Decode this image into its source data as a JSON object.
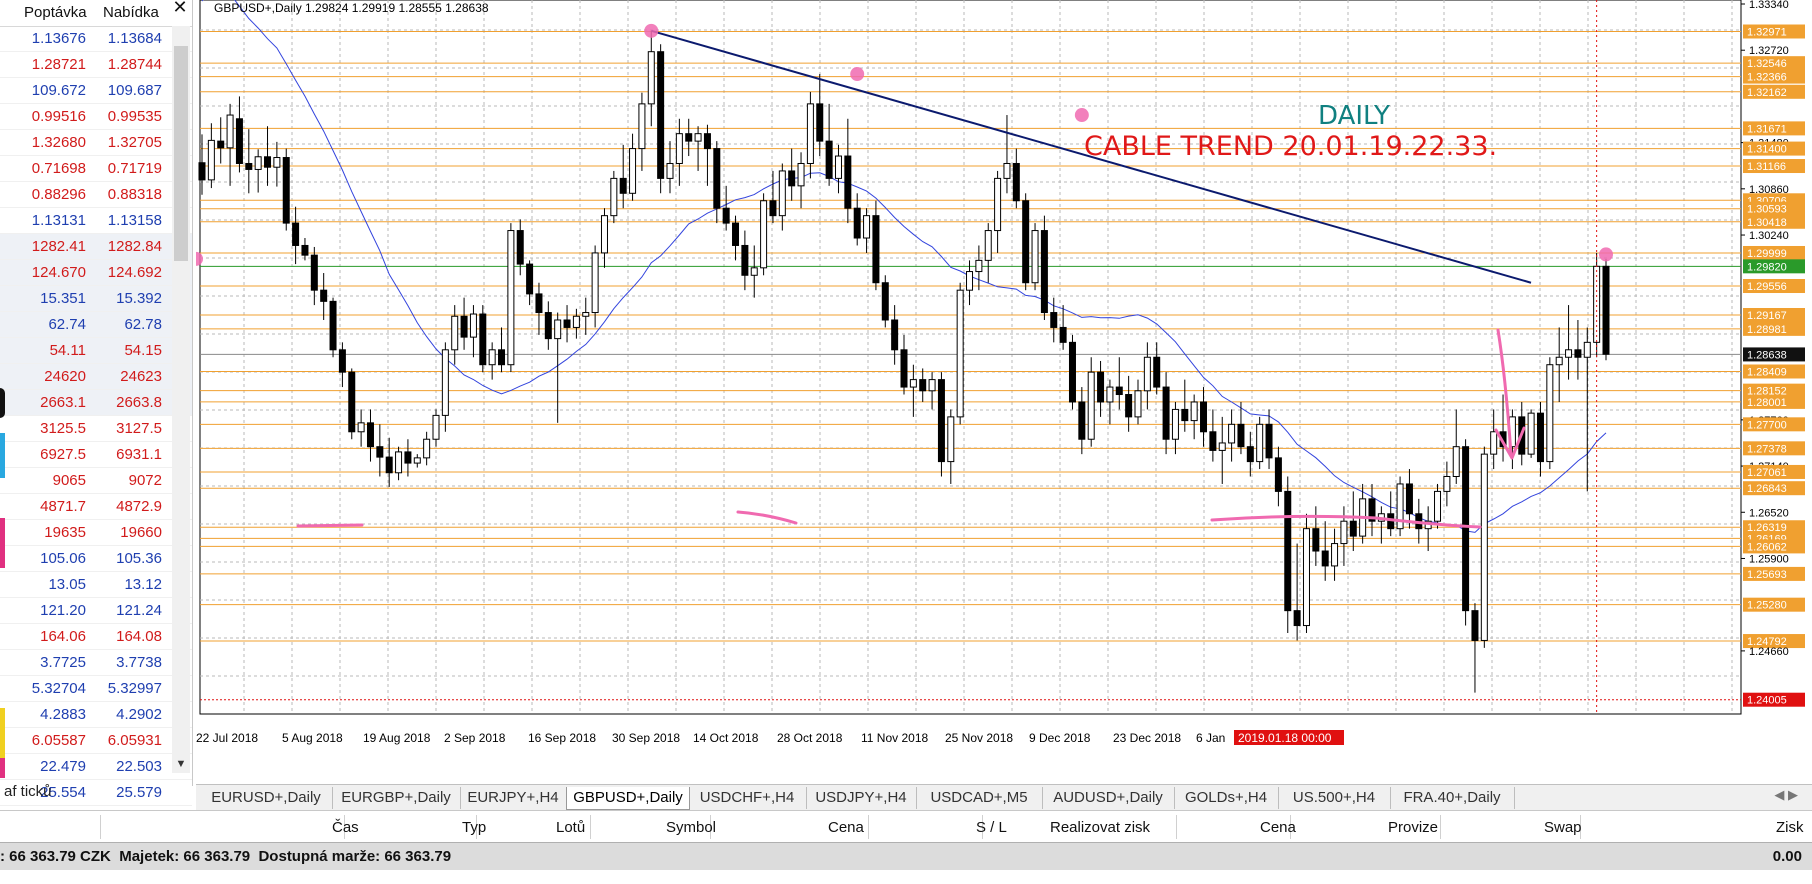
{
  "market_watch": {
    "col_bid": "Poptávka",
    "col_ask": "Nabídka",
    "close_glyph": "✕",
    "rows": [
      {
        "bid": "1.13676",
        "ask": "1.13684",
        "color": "#1f3fb0"
      },
      {
        "bid": "1.28721",
        "ask": "1.28744",
        "color": "#d11b1b"
      },
      {
        "bid": "109.672",
        "ask": "109.687",
        "color": "#1f3fb0"
      },
      {
        "bid": "0.99516",
        "ask": "0.99535",
        "color": "#d11b1b"
      },
      {
        "bid": "1.32680",
        "ask": "1.32705",
        "color": "#d11b1b"
      },
      {
        "bid": "0.71698",
        "ask": "0.71719",
        "color": "#d11b1b"
      },
      {
        "bid": "0.88296",
        "ask": "0.88318",
        "color": "#d11b1b"
      },
      {
        "bid": "1.13131",
        "ask": "1.13158",
        "color": "#1f3fb0"
      },
      {
        "bid": "1282.41",
        "ask": "1282.84",
        "color": "#d11b1b"
      },
      {
        "bid": "124.670",
        "ask": "124.692",
        "color": "#d11b1b"
      },
      {
        "bid": "15.351",
        "ask": "15.392",
        "color": "#1f3fb0"
      },
      {
        "bid": "62.74",
        "ask": "62.78",
        "color": "#1f3fb0"
      },
      {
        "bid": "54.11",
        "ask": "54.15",
        "color": "#d11b1b"
      },
      {
        "bid": "24620",
        "ask": "24623",
        "color": "#d11b1b"
      },
      {
        "bid": "2663.1",
        "ask": "2663.8",
        "color": "#d11b1b"
      },
      {
        "bid": "3125.5",
        "ask": "3127.5",
        "color": "#d11b1b"
      },
      {
        "bid": "6927.5",
        "ask": "6931.1",
        "color": "#d11b1b"
      },
      {
        "bid": "9065",
        "ask": "9072",
        "color": "#d11b1b"
      },
      {
        "bid": "4871.7",
        "ask": "4872.9",
        "color": "#d11b1b"
      },
      {
        "bid": "19635",
        "ask": "19660",
        "color": "#d11b1b"
      },
      {
        "bid": "105.06",
        "ask": "105.36",
        "color": "#1f3fb0"
      },
      {
        "bid": "13.05",
        "ask": "13.12",
        "color": "#1f3fb0"
      },
      {
        "bid": "121.20",
        "ask": "121.24",
        "color": "#1f3fb0"
      },
      {
        "bid": "164.06",
        "ask": "164.08",
        "color": "#d11b1b"
      },
      {
        "bid": "3.7725",
        "ask": "3.7738",
        "color": "#1f3fb0"
      },
      {
        "bid": "5.32704",
        "ask": "5.32997",
        "color": "#1f3fb0"
      },
      {
        "bid": "4.2883",
        "ask": "4.2902",
        "color": "#1f3fb0"
      },
      {
        "bid": "6.05587",
        "ask": "6.05931",
        "color": "#d11b1b"
      },
      {
        "bid": "22.479",
        "ask": "22.503",
        "color": "#1f3fb0"
      },
      {
        "bid": "25.554",
        "ask": "25.579",
        "color": "#1f3fb0"
      }
    ],
    "bottom_tab": "af ticků"
  },
  "chart": {
    "header": "GBPUSD+,Daily  1.29824 1.29919 1.28555 1.28638",
    "annotation_line1": "DAILY",
    "annotation_line2": "CABLE TREND 20.01.19.22.33.",
    "date_labels": [
      "22 Jul 2018",
      "5 Aug 2018",
      "19 Aug 2018",
      "2 Sep 2018",
      "16 Sep 2018",
      "30 Sep 2018",
      "14 Oct 2018",
      "28 Oct 2018",
      "11 Nov 2018",
      "25 Nov 2018",
      "9 Dec 2018",
      "23 Dec 2018",
      "6 Jan"
    ],
    "date_highlight": "2019.01.18 00:00",
    "price_labels": [
      "1.33340",
      "1.32971",
      "1.32720",
      "1.32546",
      "1.32366",
      "1.32162",
      "1.31671",
      "1.31480",
      "1.31400",
      "1.31166",
      "1.30860",
      "1.30706",
      "1.30593",
      "1.30418",
      "1.30240",
      "1.29999",
      "1.29820",
      "1.29556",
      "1.29167",
      "1.28981",
      "1.28638",
      "1.28409",
      "1.28152",
      "1.28001",
      "1.27760",
      "1.27700",
      "1.27378",
      "1.27140",
      "1.27061",
      "1.26843",
      "1.26520",
      "1.26319",
      "1.26169",
      "1.26062",
      "1.25900",
      "1.25693",
      "1.25280",
      "1.24792",
      "1.24660",
      "1.24005"
    ],
    "highlight_labels": {
      "current": "1.28638",
      "green": "1.29820",
      "red": "1.24005"
    },
    "price_range": [
      1.2384,
      1.3334
    ],
    "candles": [
      {
        "o": 1.3121,
        "h": 1.3159,
        "l": 1.3078,
        "c": 1.3098
      },
      {
        "o": 1.3098,
        "h": 1.3174,
        "l": 1.3087,
        "c": 1.3151
      },
      {
        "o": 1.315,
        "h": 1.3182,
        "l": 1.312,
        "c": 1.3141
      },
      {
        "o": 1.3141,
        "h": 1.32,
        "l": 1.309,
        "c": 1.3185
      },
      {
        "o": 1.318,
        "h": 1.321,
        "l": 1.3108,
        "c": 1.312
      },
      {
        "o": 1.312,
        "h": 1.3166,
        "l": 1.308,
        "c": 1.3112
      },
      {
        "o": 1.3112,
        "h": 1.3139,
        "l": 1.3081,
        "c": 1.3129
      },
      {
        "o": 1.3129,
        "h": 1.317,
        "l": 1.309,
        "c": 1.3115
      },
      {
        "o": 1.3115,
        "h": 1.3149,
        "l": 1.3089,
        "c": 1.3128
      },
      {
        "o": 1.3128,
        "h": 1.314,
        "l": 1.303,
        "c": 1.304
      },
      {
        "o": 1.304,
        "h": 1.3062,
        "l": 1.2985,
        "c": 1.301
      },
      {
        "o": 1.301,
        "h": 1.302,
        "l": 1.299,
        "c": 1.2997
      },
      {
        "o": 1.2997,
        "h": 1.3008,
        "l": 1.293,
        "c": 1.295
      },
      {
        "o": 1.295,
        "h": 1.2973,
        "l": 1.291,
        "c": 1.2935
      },
      {
        "o": 1.2935,
        "h": 1.294,
        "l": 1.286,
        "c": 1.287
      },
      {
        "o": 1.287,
        "h": 1.288,
        "l": 1.282,
        "c": 1.284
      },
      {
        "o": 1.284,
        "h": 1.2845,
        "l": 1.275,
        "c": 1.276
      },
      {
        "o": 1.276,
        "h": 1.279,
        "l": 1.274,
        "c": 1.2772
      },
      {
        "o": 1.2772,
        "h": 1.279,
        "l": 1.272,
        "c": 1.274
      },
      {
        "o": 1.274,
        "h": 1.277,
        "l": 1.27,
        "c": 1.2726
      },
      {
        "o": 1.2726,
        "h": 1.2752,
        "l": 1.2686,
        "c": 1.2705
      },
      {
        "o": 1.2705,
        "h": 1.274,
        "l": 1.2695,
        "c": 1.2733
      },
      {
        "o": 1.2733,
        "h": 1.275,
        "l": 1.27,
        "c": 1.2718
      },
      {
        "o": 1.2718,
        "h": 1.273,
        "l": 1.2712,
        "c": 1.2725
      },
      {
        "o": 1.2725,
        "h": 1.276,
        "l": 1.2715,
        "c": 1.275
      },
      {
        "o": 1.275,
        "h": 1.279,
        "l": 1.274,
        "c": 1.2782
      },
      {
        "o": 1.2782,
        "h": 1.288,
        "l": 1.276,
        "c": 1.287
      },
      {
        "o": 1.287,
        "h": 1.293,
        "l": 1.285,
        "c": 1.2915
      },
      {
        "o": 1.2915,
        "h": 1.294,
        "l": 1.287,
        "c": 1.2887
      },
      {
        "o": 1.2887,
        "h": 1.293,
        "l": 1.286,
        "c": 1.2918
      },
      {
        "o": 1.2918,
        "h": 1.293,
        "l": 1.284,
        "c": 1.285
      },
      {
        "o": 1.285,
        "h": 1.288,
        "l": 1.283,
        "c": 1.287
      },
      {
        "o": 1.287,
        "h": 1.29,
        "l": 1.284,
        "c": 1.285
      },
      {
        "o": 1.285,
        "h": 1.304,
        "l": 1.284,
        "c": 1.303
      },
      {
        "o": 1.303,
        "h": 1.3045,
        "l": 1.297,
        "c": 1.2985
      },
      {
        "o": 1.2985,
        "h": 1.299,
        "l": 1.293,
        "c": 1.2945
      },
      {
        "o": 1.2945,
        "h": 1.296,
        "l": 1.289,
        "c": 1.292
      },
      {
        "o": 1.292,
        "h": 1.2935,
        "l": 1.287,
        "c": 1.2885
      },
      {
        "o": 1.2885,
        "h": 1.292,
        "l": 1.2772,
        "c": 1.291
      },
      {
        "o": 1.291,
        "h": 1.293,
        "l": 1.288,
        "c": 1.29
      },
      {
        "o": 1.29,
        "h": 1.2925,
        "l": 1.2885,
        "c": 1.2915
      },
      {
        "o": 1.2915,
        "h": 1.294,
        "l": 1.289,
        "c": 1.292
      },
      {
        "o": 1.292,
        "h": 1.301,
        "l": 1.29,
        "c": 1.3
      },
      {
        "o": 1.3,
        "h": 1.306,
        "l": 1.298,
        "c": 1.305
      },
      {
        "o": 1.305,
        "h": 1.311,
        "l": 1.304,
        "c": 1.31
      },
      {
        "o": 1.31,
        "h": 1.3145,
        "l": 1.306,
        "c": 1.308
      },
      {
        "o": 1.308,
        "h": 1.316,
        "l": 1.307,
        "c": 1.314
      },
      {
        "o": 1.314,
        "h": 1.3215,
        "l": 1.311,
        "c": 1.32
      },
      {
        "o": 1.32,
        "h": 1.3298,
        "l": 1.317,
        "c": 1.327
      },
      {
        "o": 1.327,
        "h": 1.328,
        "l": 1.308,
        "c": 1.31
      },
      {
        "o": 1.31,
        "h": 1.315,
        "l": 1.308,
        "c": 1.312
      },
      {
        "o": 1.312,
        "h": 1.318,
        "l": 1.309,
        "c": 1.316
      },
      {
        "o": 1.316,
        "h": 1.318,
        "l": 1.313,
        "c": 1.315
      },
      {
        "o": 1.315,
        "h": 1.317,
        "l": 1.311,
        "c": 1.316
      },
      {
        "o": 1.316,
        "h": 1.3172,
        "l": 1.309,
        "c": 1.314
      },
      {
        "o": 1.314,
        "h": 1.315,
        "l": 1.304,
        "c": 1.306
      },
      {
        "o": 1.306,
        "h": 1.309,
        "l": 1.303,
        "c": 1.304
      },
      {
        "o": 1.304,
        "h": 1.305,
        "l": 1.299,
        "c": 1.301
      },
      {
        "o": 1.301,
        "h": 1.303,
        "l": 1.295,
        "c": 1.297
      },
      {
        "o": 1.297,
        "h": 1.301,
        "l": 1.294,
        "c": 1.298
      },
      {
        "o": 1.298,
        "h": 1.308,
        "l": 1.297,
        "c": 1.307
      },
      {
        "o": 1.307,
        "h": 1.311,
        "l": 1.304,
        "c": 1.305
      },
      {
        "o": 1.305,
        "h": 1.312,
        "l": 1.303,
        "c": 1.311
      },
      {
        "o": 1.311,
        "h": 1.314,
        "l": 1.307,
        "c": 1.309
      },
      {
        "o": 1.309,
        "h": 1.3135,
        "l": 1.306,
        "c": 1.312
      },
      {
        "o": 1.312,
        "h": 1.3216,
        "l": 1.31,
        "c": 1.32
      },
      {
        "o": 1.32,
        "h": 1.324,
        "l": 1.313,
        "c": 1.315
      },
      {
        "o": 1.315,
        "h": 1.32,
        "l": 1.309,
        "c": 1.31
      },
      {
        "o": 1.31,
        "h": 1.3145,
        "l": 1.308,
        "c": 1.313
      },
      {
        "o": 1.313,
        "h": 1.318,
        "l": 1.304,
        "c": 1.306
      },
      {
        "o": 1.306,
        "h": 1.308,
        "l": 1.301,
        "c": 1.302
      },
      {
        "o": 1.302,
        "h": 1.306,
        "l": 1.3,
        "c": 1.305
      },
      {
        "o": 1.305,
        "h": 1.307,
        "l": 1.295,
        "c": 1.296
      },
      {
        "o": 1.296,
        "h": 1.297,
        "l": 1.29,
        "c": 1.291
      },
      {
        "o": 1.291,
        "h": 1.293,
        "l": 1.285,
        "c": 1.287
      },
      {
        "o": 1.287,
        "h": 1.289,
        "l": 1.281,
        "c": 1.282
      },
      {
        "o": 1.282,
        "h": 1.285,
        "l": 1.278,
        "c": 1.283
      },
      {
        "o": 1.283,
        "h": 1.2845,
        "l": 1.28,
        "c": 1.2815
      },
      {
        "o": 1.2815,
        "h": 1.284,
        "l": 1.279,
        "c": 1.283
      },
      {
        "o": 1.283,
        "h": 1.284,
        "l": 1.27,
        "c": 1.272
      },
      {
        "o": 1.272,
        "h": 1.279,
        "l": 1.269,
        "c": 1.278
      },
      {
        "o": 1.278,
        "h": 1.296,
        "l": 1.277,
        "c": 1.295
      },
      {
        "o": 1.295,
        "h": 1.299,
        "l": 1.293,
        "c": 1.2975
      },
      {
        "o": 1.2975,
        "h": 1.301,
        "l": 1.295,
        "c": 1.299
      },
      {
        "o": 1.299,
        "h": 1.304,
        "l": 1.296,
        "c": 1.303
      },
      {
        "o": 1.303,
        "h": 1.311,
        "l": 1.3,
        "c": 1.31
      },
      {
        "o": 1.31,
        "h": 1.3185,
        "l": 1.308,
        "c": 1.312
      },
      {
        "o": 1.312,
        "h": 1.314,
        "l": 1.306,
        "c": 1.307
      },
      {
        "o": 1.307,
        "h": 1.308,
        "l": 1.295,
        "c": 1.296
      },
      {
        "o": 1.296,
        "h": 1.304,
        "l": 1.295,
        "c": 1.303
      },
      {
        "o": 1.303,
        "h": 1.305,
        "l": 1.291,
        "c": 1.292
      },
      {
        "o": 1.292,
        "h": 1.294,
        "l": 1.288,
        "c": 1.29
      },
      {
        "o": 1.29,
        "h": 1.293,
        "l": 1.287,
        "c": 1.288
      },
      {
        "o": 1.288,
        "h": 1.289,
        "l": 1.279,
        "c": 1.28
      },
      {
        "o": 1.28,
        "h": 1.282,
        "l": 1.273,
        "c": 1.275
      },
      {
        "o": 1.275,
        "h": 1.286,
        "l": 1.274,
        "c": 1.284
      },
      {
        "o": 1.284,
        "h": 1.2855,
        "l": 1.278,
        "c": 1.28
      },
      {
        "o": 1.28,
        "h": 1.283,
        "l": 1.277,
        "c": 1.282
      },
      {
        "o": 1.282,
        "h": 1.286,
        "l": 1.279,
        "c": 1.281
      },
      {
        "o": 1.281,
        "h": 1.2835,
        "l": 1.276,
        "c": 1.278
      },
      {
        "o": 1.278,
        "h": 1.283,
        "l": 1.277,
        "c": 1.2815
      },
      {
        "o": 1.2815,
        "h": 1.288,
        "l": 1.279,
        "c": 1.286
      },
      {
        "o": 1.286,
        "h": 1.288,
        "l": 1.281,
        "c": 1.282
      },
      {
        "o": 1.282,
        "h": 1.284,
        "l": 1.273,
        "c": 1.275
      },
      {
        "o": 1.275,
        "h": 1.28,
        "l": 1.273,
        "c": 1.279
      },
      {
        "o": 1.279,
        "h": 1.283,
        "l": 1.276,
        "c": 1.2775
      },
      {
        "o": 1.2775,
        "h": 1.281,
        "l": 1.275,
        "c": 1.28
      },
      {
        "o": 1.28,
        "h": 1.282,
        "l": 1.274,
        "c": 1.276
      },
      {
        "o": 1.276,
        "h": 1.279,
        "l": 1.272,
        "c": 1.2735
      },
      {
        "o": 1.2735,
        "h": 1.278,
        "l": 1.269,
        "c": 1.2745
      },
      {
        "o": 1.2745,
        "h": 1.279,
        "l": 1.272,
        "c": 1.277
      },
      {
        "o": 1.277,
        "h": 1.28,
        "l": 1.273,
        "c": 1.274
      },
      {
        "o": 1.274,
        "h": 1.276,
        "l": 1.27,
        "c": 1.272
      },
      {
        "o": 1.272,
        "h": 1.278,
        "l": 1.271,
        "c": 1.277
      },
      {
        "o": 1.277,
        "h": 1.279,
        "l": 1.271,
        "c": 1.2725
      },
      {
        "o": 1.2725,
        "h": 1.274,
        "l": 1.266,
        "c": 1.268
      },
      {
        "o": 1.268,
        "h": 1.27,
        "l": 1.249,
        "c": 1.252
      },
      {
        "o": 1.252,
        "h": 1.261,
        "l": 1.248,
        "c": 1.25
      },
      {
        "o": 1.25,
        "h": 1.265,
        "l": 1.249,
        "c": 1.263
      },
      {
        "o": 1.263,
        "h": 1.266,
        "l": 1.258,
        "c": 1.26
      },
      {
        "o": 1.26,
        "h": 1.264,
        "l": 1.256,
        "c": 1.258
      },
      {
        "o": 1.258,
        "h": 1.263,
        "l": 1.256,
        "c": 1.261
      },
      {
        "o": 1.261,
        "h": 1.266,
        "l": 1.258,
        "c": 1.264
      },
      {
        "o": 1.264,
        "h": 1.268,
        "l": 1.26,
        "c": 1.262
      },
      {
        "o": 1.262,
        "h": 1.269,
        "l": 1.261,
        "c": 1.267
      },
      {
        "o": 1.267,
        "h": 1.269,
        "l": 1.262,
        "c": 1.264
      },
      {
        "o": 1.264,
        "h": 1.266,
        "l": 1.261,
        "c": 1.265
      },
      {
        "o": 1.265,
        "h": 1.268,
        "l": 1.262,
        "c": 1.263
      },
      {
        "o": 1.263,
        "h": 1.27,
        "l": 1.262,
        "c": 1.269
      },
      {
        "o": 1.269,
        "h": 1.271,
        "l": 1.263,
        "c": 1.265
      },
      {
        "o": 1.265,
        "h": 1.267,
        "l": 1.261,
        "c": 1.263
      },
      {
        "o": 1.263,
        "h": 1.266,
        "l": 1.26,
        "c": 1.264
      },
      {
        "o": 1.264,
        "h": 1.269,
        "l": 1.263,
        "c": 1.268
      },
      {
        "o": 1.268,
        "h": 1.272,
        "l": 1.266,
        "c": 1.27
      },
      {
        "o": 1.27,
        "h": 1.279,
        "l": 1.269,
        "c": 1.274
      },
      {
        "o": 1.274,
        "h": 1.275,
        "l": 1.25,
        "c": 1.252
      },
      {
        "o": 1.252,
        "h": 1.253,
        "l": 1.241,
        "c": 1.248
      },
      {
        "o": 1.248,
        "h": 1.274,
        "l": 1.247,
        "c": 1.273
      },
      {
        "o": 1.273,
        "h": 1.279,
        "l": 1.271,
        "c": 1.276
      },
      {
        "o": 1.276,
        "h": 1.281,
        "l": 1.272,
        "c": 1.274
      },
      {
        "o": 1.274,
        "h": 1.279,
        "l": 1.271,
        "c": 1.278
      },
      {
        "o": 1.278,
        "h": 1.28,
        "l": 1.2715,
        "c": 1.273
      },
      {
        "o": 1.273,
        "h": 1.279,
        "l": 1.2725,
        "c": 1.2785
      },
      {
        "o": 1.2785,
        "h": 1.28,
        "l": 1.27,
        "c": 1.272
      },
      {
        "o": 1.272,
        "h": 1.286,
        "l": 1.271,
        "c": 1.285
      },
      {
        "o": 1.285,
        "h": 1.29,
        "l": 1.28,
        "c": 1.286
      },
      {
        "o": 1.286,
        "h": 1.293,
        "l": 1.283,
        "c": 1.287
      },
      {
        "o": 1.287,
        "h": 1.291,
        "l": 1.283,
        "c": 1.286
      },
      {
        "o": 1.286,
        "h": 1.29,
        "l": 1.268,
        "c": 1.288
      },
      {
        "o": 1.288,
        "h": 1.3,
        "l": 1.286,
        "c": 1.2982
      },
      {
        "o": 1.2982,
        "h": 1.2992,
        "l": 1.2856,
        "c": 1.2864
      }
    ],
    "colors": {
      "grid": "#b8b8b8",
      "level": "#f0a030",
      "trend": "#0b1a6e",
      "ma": "#3344dd",
      "pink": "#f06ab0",
      "green": "#2a9a2a",
      "red": "#e01010",
      "annot_teal": "#108080",
      "annot_red": "#e01818"
    }
  },
  "tabs": [
    "EURUSD+,Daily",
    "EURGBP+,Daily",
    "EURJPY+,H4",
    "GBPUSD+,Daily",
    "USDCHF+,H4",
    "USDJPY+,H4",
    "USDCAD+,M5",
    "AUDUSD+,Daily",
    "GOLDs+,H4",
    "US.500+,H4",
    "FRA.40+,Daily"
  ],
  "active_tab": "GBPUSD+,Daily",
  "terminal_headers": [
    "Čas",
    "Typ",
    "Lotů",
    "Symbol",
    "Cena",
    "S / L",
    "Realizovat zisk",
    "Cena",
    "Provize",
    "Swap",
    "Zisk"
  ],
  "status": {
    "left": ": 66 363.79 CZK  Majetek: 66 363.79  Dostupná marže: 66 363.79",
    "right": "0.00"
  }
}
